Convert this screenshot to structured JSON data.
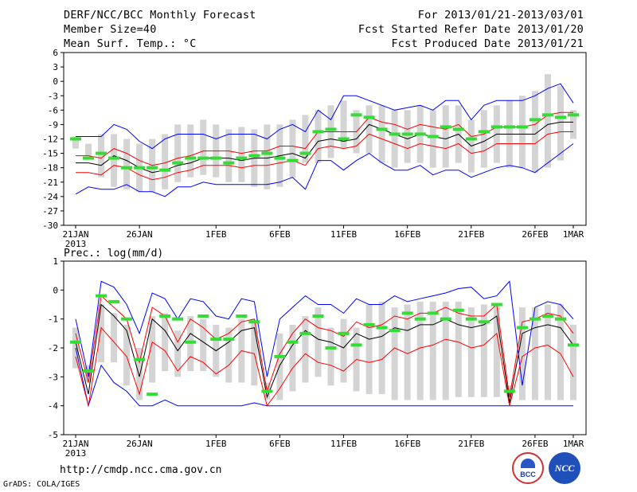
{
  "header": {
    "title": "DERF/NCC/BCC Monthly Forecast",
    "member_size": "Member Size=40",
    "variable": "Mean Surf. Temp.: °C",
    "period": "For 2013/01/21-2013/03/01",
    "start": "Fcst Started Refer Date 2013/01/20",
    "produced": "Fcst Produced Date 2013/01/21"
  },
  "footer": {
    "url": "http://cmdp.ncc.cma.gov.cn",
    "grads": "GrADS: COLA/IGES",
    "logo1_text": "BCC",
    "logo2_text": "NCC"
  },
  "colors": {
    "box": "#d4d4d4",
    "envelope": "#0000ff",
    "spread": "#ff0000",
    "mean": "#000000",
    "obs": "#33dd33"
  },
  "chart_data": [
    {
      "type": "box-line",
      "title": "Mean Surf. Temp.: °C",
      "ylim": [
        -30,
        6
      ],
      "yticks": [
        6,
        3,
        0,
        -3,
        -6,
        -9,
        -12,
        -15,
        -18,
        -21,
        -24,
        -27,
        -30
      ],
      "xticks": [
        {
          "day": 0,
          "label": "21JAN",
          "sub": "2013"
        },
        {
          "day": 5,
          "label": "26JAN"
        },
        {
          "day": 11,
          "label": "1FEB"
        },
        {
          "day": 16,
          "label": "6FEB"
        },
        {
          "day": 21,
          "label": "11FEB"
        },
        {
          "day": 26,
          "label": "16FEB"
        },
        {
          "day": 31,
          "label": "21FEB"
        },
        {
          "day": 36,
          "label": "26FEB"
        },
        {
          "day": 39,
          "label": "1MAR"
        }
      ],
      "box_low": [
        -14,
        -15.5,
        -20,
        -22,
        -22.5,
        -23,
        -23,
        -22.5,
        -21,
        -20,
        -19.5,
        -20,
        -21,
        -21,
        -22,
        -22.5,
        -22,
        -20,
        -17,
        -17,
        -16,
        -14,
        -15,
        -15,
        -17,
        -18,
        -17,
        -17,
        -18,
        -18,
        -17,
        -19,
        -18,
        -17,
        -18,
        -18,
        -19,
        -18,
        -16.5,
        -12
      ],
      "box_high": [
        -11.5,
        -13,
        -11,
        -11,
        -12,
        -13,
        -12,
        -11,
        -9,
        -9,
        -8,
        -9,
        -10,
        -9.5,
        -10,
        -9,
        -9,
        -8,
        -7,
        -6,
        -5,
        -4,
        -6,
        -5,
        -5,
        -6,
        -6,
        -5,
        -6,
        -5,
        -5,
        -8,
        -6,
        -5,
        -4,
        -3,
        -2,
        1.5,
        -1,
        -6
      ],
      "max": [
        -11.5,
        -11.5,
        -11.5,
        -9,
        -10,
        -12.5,
        -14,
        -12,
        -11,
        -11,
        -11,
        -12,
        -11,
        -11,
        -11,
        -12,
        -10,
        -9,
        -10.5,
        -6,
        -8,
        -3,
        -3,
        -4,
        -5,
        -6,
        -5.5,
        -5,
        -6,
        -4,
        -4,
        -8,
        -5,
        -4,
        -4,
        -4,
        -3,
        -1.5,
        -0.5,
        -4.5
      ],
      "min": [
        -23.5,
        -22,
        -22.5,
        -22.5,
        -21.5,
        -23,
        -23,
        -24,
        -22,
        -22,
        -21,
        -21.5,
        -21.5,
        -21.5,
        -21.5,
        -21.5,
        -21,
        -20,
        -22.5,
        -16.5,
        -16.5,
        -18.5,
        -16.5,
        -15,
        -17,
        -18.5,
        -18.5,
        -17.5,
        -19.5,
        -18.5,
        -18.5,
        -20,
        -19,
        -18,
        -17.5,
        -18,
        -19,
        -17,
        -15,
        -13
      ],
      "upper": [
        -15.5,
        -15.5,
        -16,
        -14,
        -15,
        -16.5,
        -17.5,
        -17,
        -16,
        -15.5,
        -14.5,
        -14.5,
        -14.5,
        -15,
        -14.5,
        -14.5,
        -13.5,
        -13.5,
        -14,
        -10.5,
        -10.5,
        -10.5,
        -10.5,
        -7.5,
        -8.5,
        -9,
        -10,
        -9,
        -9.5,
        -10,
        -9,
        -11.5,
        -11,
        -9.5,
        -9.5,
        -9.5,
        -9,
        -7,
        -6.5,
        -6.5
      ],
      "mean": [
        -17,
        -17,
        -17.5,
        -15.5,
        -16.5,
        -18,
        -19,
        -18.5,
        -17.5,
        -17,
        -16,
        -16,
        -16,
        -16.5,
        -16,
        -16,
        -15.5,
        -15,
        -16,
        -12.5,
        -12,
        -12.5,
        -12,
        -9,
        -10,
        -11,
        -12,
        -11,
        -11.5,
        -12,
        -11,
        -13.5,
        -12.5,
        -11,
        -11,
        -11,
        -11,
        -9,
        -8.5,
        -8.5
      ],
      "lower": [
        -19,
        -19,
        -19.5,
        -17.5,
        -18,
        -19.5,
        -20.5,
        -20,
        -19,
        -18.5,
        -17.5,
        -17.5,
        -17.5,
        -18,
        -17.5,
        -17.5,
        -17,
        -16.5,
        -17.5,
        -14,
        -13.5,
        -14,
        -13.5,
        -11,
        -12,
        -13,
        -14,
        -13,
        -13.5,
        -14,
        -13,
        -15,
        -14.5,
        -13,
        -13,
        -13,
        -13,
        -11,
        -10.5,
        -10.5
      ],
      "obs": [
        -12,
        -16,
        -15,
        -16,
        -18,
        -18,
        -18,
        -18.5,
        -17,
        -16,
        -16,
        -16,
        -17,
        -16,
        -15.5,
        -15,
        -16,
        -16.5,
        -15,
        -10.5,
        -10,
        -12,
        -7,
        -7.5,
        -10,
        -11,
        -11,
        -11,
        -11.5,
        -9.5,
        -10,
        -12,
        -10.5,
        -9.5,
        -9.5,
        -9.5,
        -8,
        -7,
        -7.5,
        -7
      ]
    },
    {
      "type": "box-line",
      "title": "Prec.: log(mm/d)",
      "ylim": [
        -5,
        1
      ],
      "yticks": [
        1,
        0,
        -1,
        -2,
        -3,
        -4,
        -5
      ],
      "xticks": [
        {
          "day": 0,
          "label": "21JAN",
          "sub": "2013"
        },
        {
          "day": 5,
          "label": "26JAN"
        },
        {
          "day": 11,
          "label": "1FEB"
        },
        {
          "day": 16,
          "label": "6FEB"
        },
        {
          "day": 21,
          "label": "11FEB"
        },
        {
          "day": 26,
          "label": "16FEB"
        },
        {
          "day": 31,
          "label": "21FEB"
        },
        {
          "day": 36,
          "label": "26FEB"
        },
        {
          "day": 39,
          "label": "1MAR"
        }
      ],
      "box_low": [
        -2.7,
        -3.2,
        -2.5,
        -2.5,
        -3.3,
        -3.8,
        -3.2,
        -2.8,
        -3.0,
        -2.8,
        -2.8,
        -3.0,
        -3.2,
        -3.2,
        -3.3,
        -3.8,
        -3.8,
        -3.5,
        -3.2,
        -3.0,
        -3.3,
        -3.2,
        -3.5,
        -3.6,
        -3.6,
        -3.8,
        -3.8,
        -3.8,
        -3.8,
        -3.8,
        -3.7,
        -3.7,
        -3.7,
        -3.7,
        -3.7,
        -3.8,
        -3.8,
        -3.8,
        -3.8,
        -3.8
      ],
      "box_high": [
        -1.3,
        -2.6,
        -0.5,
        -0.8,
        -1.2,
        -2.0,
        -0.9,
        -0.8,
        -1.4,
        -0.9,
        -1.0,
        -1.2,
        -1.3,
        -1.0,
        -1.0,
        -3.2,
        -1.5,
        -1.2,
        -0.9,
        -0.6,
        -1.3,
        -1.0,
        -1.3,
        -0.5,
        -0.4,
        -0.6,
        -0.5,
        -0.4,
        -0.4,
        -0.4,
        -0.4,
        -0.6,
        -0.5,
        -0.5,
        -3.3,
        -0.6,
        -0.6,
        -0.5,
        -0.5,
        -1.2
      ],
      "max": [
        -1.0,
        -3.0,
        0.3,
        0.1,
        -0.5,
        -1.5,
        -0.1,
        -0.3,
        -1.0,
        -0.3,
        -0.4,
        -0.9,
        -1.0,
        -0.3,
        -0.4,
        -3.0,
        -1.0,
        -0.6,
        -0.2,
        -0.5,
        -0.5,
        -0.8,
        -0.3,
        -0.5,
        -0.5,
        -0.2,
        -0.4,
        -0.3,
        -0.2,
        -0.1,
        0.05,
        0.1,
        -0.3,
        -0.2,
        0.3,
        -3.3,
        -0.6,
        -0.4,
        -0.5,
        -1.0
      ],
      "min": [
        -2.0,
        -4.0,
        -2.6,
        -3.2,
        -3.5,
        -4.0,
        -4.0,
        -3.8,
        -4.0,
        -4.0,
        -4.0,
        -4.0,
        -4.0,
        -4.0,
        -3.9,
        -4.0,
        -4.0,
        -4.0,
        -4.0,
        -4.0,
        -4.0,
        -4.0,
        -4.0,
        -4.0,
        -4.0,
        -4.0,
        -4.0,
        -4.0,
        -4.0,
        -4.0,
        -4.0,
        -4.0,
        -4.0,
        -4.0,
        -4.0,
        -4.0,
        -4.0,
        -4.0,
        -4.0,
        -4.0
      ],
      "upper": [
        -1.5,
        -3.2,
        -0.2,
        -0.6,
        -1.0,
        -2.5,
        -0.6,
        -0.9,
        -1.8,
        -1.0,
        -1.3,
        -1.7,
        -1.5,
        -1.1,
        -1.0,
        -3.5,
        -2.2,
        -1.5,
        -1.0,
        -1.3,
        -1.4,
        -1.6,
        -1.1,
        -1.3,
        -1.2,
        -0.9,
        -1.0,
        -0.8,
        -0.8,
        -0.6,
        -0.8,
        -0.9,
        -0.9,
        -0.5,
        -3.7,
        -1.1,
        -1.0,
        -0.8,
        -0.9,
        -1.5
      ],
      "mean": [
        -1.8,
        -3.6,
        -0.5,
        -0.9,
        -1.4,
        -3.0,
        -1.0,
        -1.4,
        -2.1,
        -1.5,
        -1.8,
        -2.1,
        -1.8,
        -1.4,
        -1.3,
        -3.7,
        -2.6,
        -1.9,
        -1.4,
        -1.7,
        -1.8,
        -2.0,
        -1.5,
        -1.7,
        -1.6,
        -1.3,
        -1.4,
        -1.2,
        -1.2,
        -1.0,
        -1.2,
        -1.3,
        -1.2,
        -0.9,
        -3.9,
        -1.5,
        -1.3,
        -1.2,
        -1.3,
        -1.9
      ],
      "lower": [
        -2.3,
        -4.0,
        -1.3,
        -1.8,
        -2.3,
        -3.6,
        -1.8,
        -2.1,
        -2.8,
        -2.3,
        -2.5,
        -2.9,
        -2.6,
        -2.1,
        -2.2,
        -4.0,
        -3.4,
        -2.7,
        -2.2,
        -2.5,
        -2.6,
        -2.8,
        -2.4,
        -2.5,
        -2.4,
        -2.0,
        -2.2,
        -2.0,
        -1.9,
        -1.7,
        -1.8,
        -2.0,
        -1.9,
        -1.5,
        -4.0,
        -2.3,
        -2.0,
        -1.9,
        -2.2,
        -3.0
      ],
      "obs": [
        -1.8,
        -2.8,
        -0.2,
        -0.4,
        -1.0,
        -2.4,
        -3.6,
        -0.9,
        -1.0,
        -1.8,
        -0.9,
        -1.7,
        -1.7,
        -0.9,
        -1.1,
        -3.5,
        -2.3,
        -1.8,
        -1.5,
        -0.9,
        -2.0,
        -1.5,
        -1.9,
        -1.2,
        -1.3,
        -1.4,
        -0.8,
        -1.0,
        -0.8,
        -1.0,
        -0.7,
        -1.0,
        -1.1,
        -0.5,
        -3.5,
        -1.3,
        -1.0,
        -0.9,
        -1.0,
        -1.9
      ]
    }
  ]
}
